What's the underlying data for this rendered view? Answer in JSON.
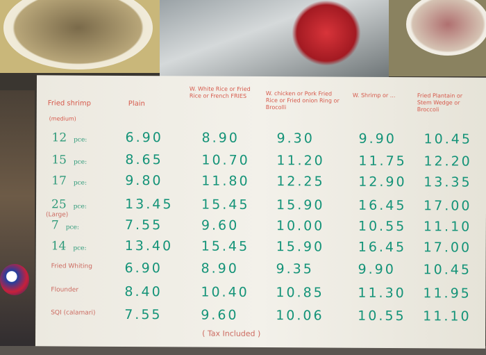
{
  "menu": {
    "headers": {
      "item": "Fried shrimp",
      "size_note": "(medium)",
      "plain": "Plain",
      "col2": "W. White Rice or Fried Rice or French FRIES",
      "col3": "W. chicken or Pork Fried Rice or Fried onion Ring or Brocolli",
      "col4": "W. Shrimp or ...",
      "col5": "Fried Plantain or Stem Wedge or Broccoli"
    },
    "large_note": "(Large)",
    "rows": [
      {
        "label": "12",
        "unit": "pce:",
        "prices": [
          "6.90",
          "8.90",
          "9.30",
          "9.90",
          "10.45"
        ]
      },
      {
        "label": "15",
        "unit": "pce:",
        "prices": [
          "8.65",
          "10.70",
          "11.20",
          "11.75",
          "12.20"
        ]
      },
      {
        "label": "17",
        "unit": "pce:",
        "prices": [
          "9.80",
          "11.80",
          "12.25",
          "12.90",
          "13.35"
        ]
      },
      {
        "label": "25",
        "unit": "pce:",
        "prices": [
          "13.45",
          "15.45",
          "15.90",
          "16.45",
          "17.00"
        ]
      },
      {
        "label": "7",
        "unit": "pce:",
        "prices": [
          "7.55",
          "9.60",
          "10.00",
          "10.55",
          "11.10"
        ]
      },
      {
        "label": "14",
        "unit": "pce:",
        "prices": [
          "13.40",
          "15.45",
          "15.90",
          "16.45",
          "17.00"
        ]
      },
      {
        "label": "Fried Whiting",
        "unit": "",
        "prices": [
          "6.90",
          "8.90",
          "9.35",
          "9.90",
          "10.45"
        ]
      },
      {
        "label": "Flounder",
        "unit": "",
        "prices": [
          "8.40",
          "10.40",
          "10.85",
          "11.30",
          "11.95"
        ]
      },
      {
        "label": "SQI (calamari)",
        "unit": "",
        "prices": [
          "7.55",
          "9.60",
          "10.06",
          "10.55",
          "11.10"
        ]
      }
    ],
    "footer": "( Tax Included )"
  }
}
